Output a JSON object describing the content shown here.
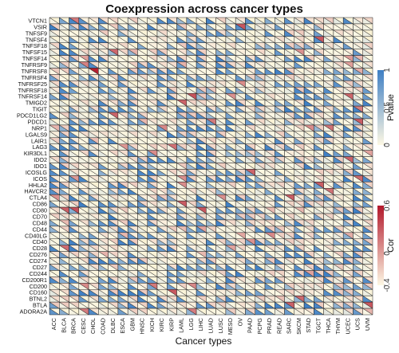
{
  "chart_data": {
    "type": "heatmap",
    "title": "Coexpression across cancer types",
    "xlabel": "Cancer types",
    "ylabel": "",
    "cell_style": "split-triangle: lower-left triangle encodes Pvalue, upper-right triangle encodes Cor",
    "x": [
      "ACC",
      "BLCA",
      "BRCA",
      "CESC",
      "CHOL",
      "COAD",
      "DLBC",
      "ESCA",
      "GBM",
      "HNSC",
      "KICH",
      "KIRC",
      "KIRP",
      "LAML",
      "LGG",
      "LIHC",
      "LUAD",
      "LUSC",
      "MESO",
      "OV",
      "PAAD",
      "PCPG",
      "PRAD",
      "READ",
      "SARC",
      "SKCM",
      "STAD",
      "TGCT",
      "THCA",
      "THYM",
      "UCEC",
      "UCS",
      "UVM"
    ],
    "y": [
      "VTCN1",
      "VSIR",
      "TNFSF9",
      "TNFSF4",
      "TNFSF18",
      "TNFSF15",
      "TNFSF14",
      "TNFRSF9",
      "TNFRSF8",
      "TNFRSF4",
      "TNFRSF25",
      "TNFRSF18",
      "TNFRSF14",
      "TMIGD2",
      "TIGIT",
      "PDCD1LG2",
      "PDCD1",
      "NRP1",
      "LGALS9",
      "LAIR1",
      "LAG3",
      "KIR3DL1",
      "IDO2",
      "IDO1",
      "ICOSLG",
      "ICOS",
      "HHLA2",
      "HAVCR2",
      "CTLA4",
      "CD86",
      "CD80",
      "CD70",
      "CD48",
      "CD44",
      "CD40LG",
      "CD40",
      "CD28",
      "CD276",
      "CD274",
      "CD27",
      "CD244",
      "CD200R1",
      "CD200",
      "CD160",
      "BTNL2",
      "BTLA",
      "ADORA2A"
    ],
    "legends": [
      {
        "title": "Pvalue",
        "ticks": [
          0,
          0.5,
          1
        ],
        "range": [
          0,
          1
        ],
        "colors": [
          "#fdf8e4",
          "#3f7fc4"
        ]
      },
      {
        "title": "Cor",
        "ticks": [
          -0.4,
          0,
          0.6
        ],
        "range": [
          -0.4,
          0.6
        ],
        "colors": [
          "#fdf8e4",
          "#b2182b"
        ]
      }
    ],
    "pvalue_pattern": "bands of high p-values (blue) interleaved with low p-values (pale) across genes and cancer types",
    "cor_pattern": "mostly near zero (pale); notable positive correlation in CHOL for TNFRSF8 and scattered red cells in TGCT/THCA/PAAD columns"
  }
}
